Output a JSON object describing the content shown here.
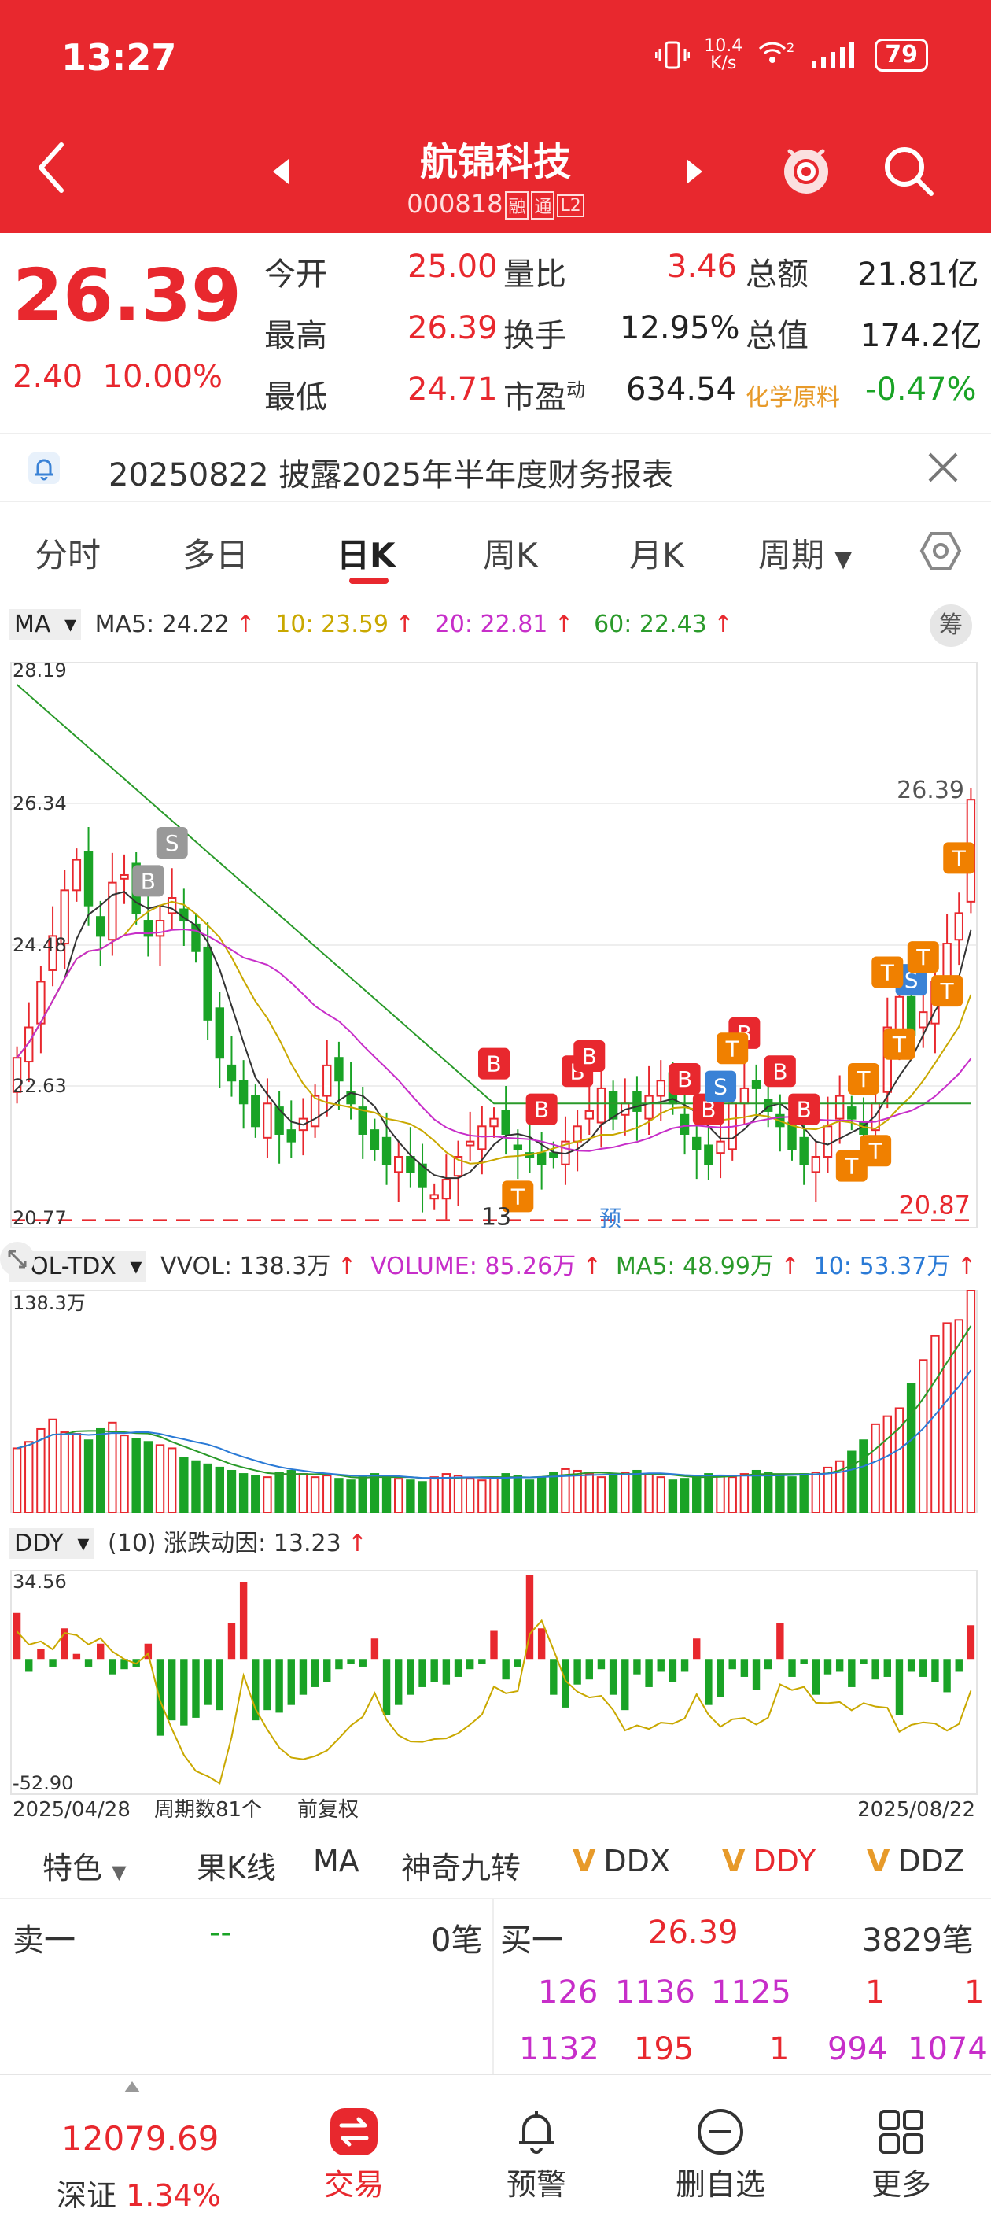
{
  "status": {
    "time": "13:27",
    "netspeed_value": "10.4",
    "netspeed_unit": "K/s",
    "battery": "79"
  },
  "header": {
    "name": "航锦科技",
    "code": "000818",
    "tags": [
      "融",
      "通",
      "L2"
    ]
  },
  "quote": {
    "price": "26.39",
    "change": "2.40",
    "change_pct": "10.00%",
    "open_label": "今开",
    "open": "25.00",
    "high_label": "最高",
    "high": "26.39",
    "low_label": "最低",
    "low": "24.71",
    "vol_ratio_label": "量比",
    "vol_ratio": "3.46",
    "turnover_label": "换手",
    "turnover": "12.95%",
    "pe_label": "市盈",
    "pe_sup": "动",
    "pe": "634.54",
    "amount_label": "总额",
    "amount": "21.81亿",
    "mktcap_label": "总值",
    "mktcap": "174.2亿",
    "sector": "化学原料",
    "sector_change": "-0.47%"
  },
  "notice": {
    "text": "20250822 披露2025年半年度财务报表"
  },
  "tabs": [
    "分时",
    "多日",
    "日K",
    "周K",
    "月K",
    "周期"
  ],
  "active_tab": 2,
  "ma_legend": {
    "name": "MA",
    "ma5": "MA5: 24.22",
    "ma10": "10: 23.59",
    "ma20": "20: 22.81",
    "ma60": "60: 22.43",
    "arrow": "↑"
  },
  "chou_label": "筹",
  "kline_axis": {
    "top": "28.19",
    "mid1": "26.34",
    "mid2": "24.48",
    "mid3": "22.63",
    "bottom": "20.77",
    "max_label": "26.39",
    "min_label": "20.87",
    "pre_label": "预",
    "low_annot": "13"
  },
  "vol_legend": {
    "name": "VOL-TDX",
    "vvol": "VVOL: 138.3万",
    "volume": "VOLUME: 85.26万",
    "ma5": "MA5: 48.99万",
    "ma10": "10: 53.37万",
    "arrow": "↑",
    "axis_top": "138.3万"
  },
  "ddy_legend": {
    "name": "DDY",
    "params": "(10) 涨跌动因: 13.23",
    "arrow": "↑",
    "axis_top": "34.56",
    "axis_bottom": "-52.90"
  },
  "footer_axis": {
    "start_date": "2025/04/28",
    "period_count": "周期数81个",
    "adjust": "前复权",
    "end_date": "2025/08/22"
  },
  "ind_tabs": {
    "special": "特色",
    "guok": "果K线",
    "ma": "MA",
    "sjjz": "神奇九转",
    "ddx": "DDX",
    "ddy": "DDY",
    "ddz": "DDZ",
    "v": "V"
  },
  "book": {
    "sell1_label": "卖一",
    "sell1_price": "--",
    "sell1_count": "0笔",
    "buy1_label": "买一",
    "buy1_price": "26.39",
    "buy1_count": "3829笔",
    "row1": [
      "126",
      "1136",
      "1125",
      "1",
      "1"
    ],
    "row2": [
      "1132",
      "195",
      "1",
      "994",
      "1074"
    ]
  },
  "nav": {
    "index_value": "12079.69",
    "index_name": "深证",
    "index_change": "1.34%",
    "trade": "交易",
    "alert": "预警",
    "delete_watch": "删自选",
    "more": "更多"
  },
  "chart_data": [
    {
      "type": "candlestick",
      "x_start": "2025/04/28",
      "x_end": "2025/08/22",
      "periods": 81,
      "ylim": [
        20.77,
        28.19
      ],
      "max_price": 26.39,
      "min_price": 20.87,
      "ma": {
        "MA5": 24.22,
        "MA10": 23.59,
        "MA20": 22.81,
        "MA60": 22.43
      },
      "closes": [
        23.0,
        23.4,
        24.0,
        24.6,
        25.2,
        25.6,
        25.0,
        24.6,
        25.3,
        25.4,
        24.9,
        24.6,
        24.8,
        25.1,
        24.8,
        24.4,
        23.5,
        23.0,
        22.7,
        22.4,
        22.1,
        22.4,
        22.0,
        21.9,
        22.2,
        22.5,
        22.9,
        22.7,
        22.4,
        22.0,
        21.8,
        21.6,
        21.7,
        21.5,
        21.3,
        21.2,
        21.4,
        21.7,
        21.9,
        22.1,
        22.2,
        22.0,
        21.8,
        21.7,
        21.6,
        21.7,
        21.9,
        22.1,
        22.3,
        22.6,
        22.2,
        22.4,
        22.3,
        22.5,
        22.7,
        22.4,
        22.0,
        21.8,
        21.6,
        21.9,
        22.4,
        22.6,
        22.6,
        22.3,
        22.1,
        21.8,
        21.6,
        21.7,
        22.1,
        22.5,
        22.2,
        22.0,
        22.4,
        23.4,
        23.8,
        23.3,
        23.6,
        24.0,
        24.5,
        24.9,
        26.39
      ],
      "signals": [
        {
          "i": 11,
          "label": "B"
        },
        {
          "i": 13,
          "label": "S"
        },
        {
          "i": 40,
          "label": "B"
        },
        {
          "i": 44,
          "label": "B"
        },
        {
          "i": 47,
          "label": "B"
        },
        {
          "i": 48,
          "label": "B"
        },
        {
          "i": 56,
          "label": "B"
        },
        {
          "i": 58,
          "label": "B"
        },
        {
          "i": 61,
          "label": "B"
        },
        {
          "i": 64,
          "label": "B"
        },
        {
          "i": 66,
          "label": "B"
        },
        {
          "i": 59,
          "label": "S"
        },
        {
          "i": 75,
          "label": "S"
        },
        {
          "i": 42,
          "label": "T"
        },
        {
          "i": 60,
          "label": "T"
        },
        {
          "i": 70,
          "label": "T"
        },
        {
          "i": 71,
          "label": "T"
        },
        {
          "i": 72,
          "label": "T"
        },
        {
          "i": 73,
          "label": "T"
        },
        {
          "i": 74,
          "label": "T"
        },
        {
          "i": 76,
          "label": "T"
        },
        {
          "i": 78,
          "label": "T"
        },
        {
          "i": 79,
          "label": "T"
        }
      ]
    },
    {
      "type": "bar",
      "name": "VOL-TDX",
      "ylim": [
        0,
        138.3
      ],
      "unit": "万",
      "values": [
        40,
        44,
        52,
        58,
        50,
        49,
        45,
        52,
        56,
        48,
        46,
        44,
        42,
        40,
        34,
        32,
        30,
        28,
        26,
        24,
        23,
        22,
        25,
        26,
        24,
        22,
        23,
        21,
        20,
        22,
        24,
        23,
        21,
        20,
        19,
        22,
        24,
        23,
        21,
        20,
        22,
        24,
        23,
        20,
        22,
        25,
        27,
        26,
        24,
        22,
        23,
        25,
        26,
        24,
        22,
        20,
        21,
        23,
        24,
        23,
        22,
        24,
        26,
        25,
        23,
        22,
        24,
        25,
        28,
        32,
        38,
        45,
        55,
        60,
        65,
        80,
        95,
        110,
        118,
        120,
        138.3
      ]
    },
    {
      "type": "bar",
      "name": "DDY",
      "ylim": [
        -52.9,
        34.56
      ],
      "values": [
        18,
        -5,
        4,
        -3,
        12,
        2,
        -3,
        6,
        -6,
        -4,
        -3,
        6,
        -30,
        -24,
        -26,
        -23,
        -18,
        -20,
        14,
        30,
        -24,
        -20,
        -21,
        -18,
        -14,
        -11,
        -9,
        -4,
        -2,
        -3,
        8,
        -22,
        -18,
        -14,
        -11,
        -9,
        -10,
        -7,
        -4,
        -2,
        11,
        -8,
        -3,
        33,
        12,
        -14,
        -19,
        -10,
        -8,
        -4,
        -14,
        -20,
        -6,
        -11,
        -5,
        -9,
        -5,
        8,
        -18,
        -15,
        -4,
        -7,
        -12,
        -4,
        14,
        -7,
        -2,
        -14,
        -6,
        -5,
        -11,
        -2,
        -8,
        -7,
        -22,
        -5,
        -7,
        -9,
        -13,
        -5,
        13.23
      ]
    }
  ]
}
